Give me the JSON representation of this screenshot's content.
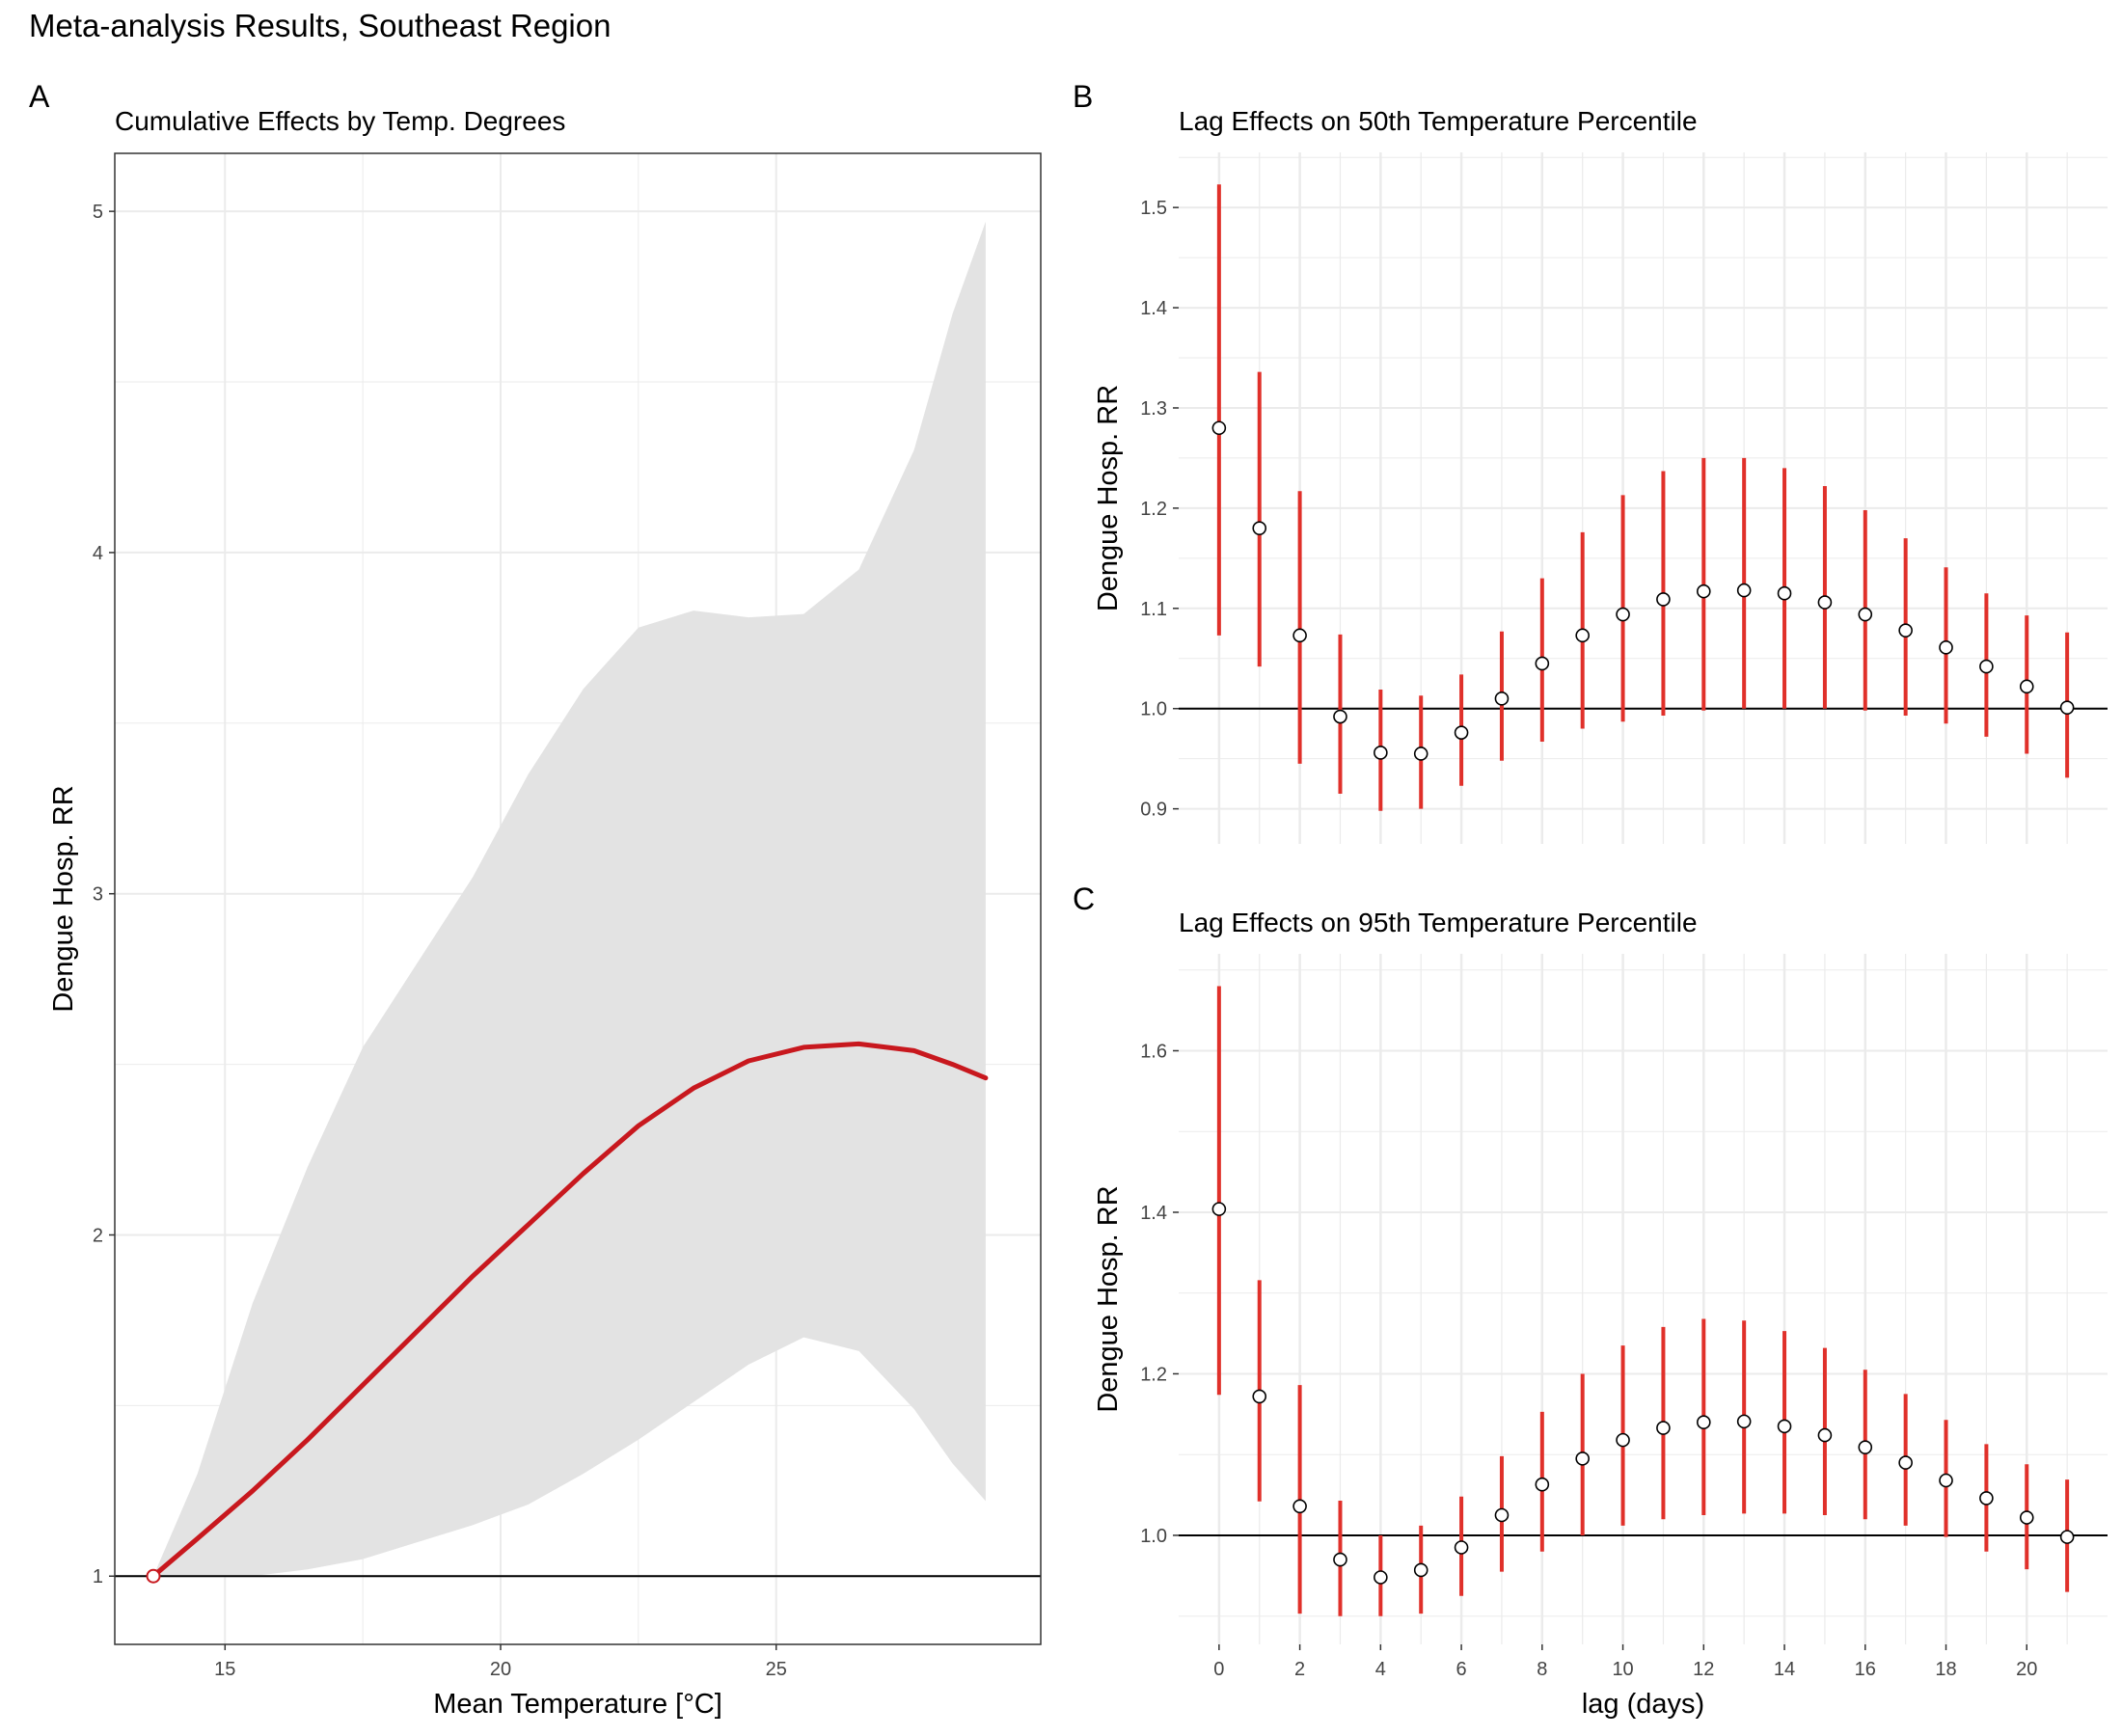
{
  "figure": {
    "title": "Meta-analysis Results, Southeast Region",
    "colors": {
      "line": "#c8181e",
      "bar": "#e0302a",
      "band": "#e3e3e3",
      "grid": "#ebebeb",
      "refline": "#000000"
    }
  },
  "chart_data": [
    {
      "panel": "A",
      "type": "line",
      "title": "Cumulative Effects by Temp. Degrees",
      "xlabel": "Mean Temperature [°C]",
      "ylabel": "Dengue Hosp. RR",
      "xlim": [
        13,
        29.8
      ],
      "ylim": [
        0.8,
        5.17
      ],
      "xticks": [
        15,
        20,
        25
      ],
      "yticks": [
        1,
        2,
        3,
        4,
        5
      ],
      "reference_line": 1,
      "reference_point": {
        "x": 13.7,
        "y": 1
      },
      "grid": true,
      "border": true,
      "series": [
        {
          "x": [
            13.7,
            14.5,
            15.5,
            16.5,
            17.5,
            18.5,
            19.5,
            20.5,
            21.5,
            22.5,
            23.5,
            24.5,
            25.5,
            26.5,
            27.5,
            28.2,
            28.8
          ],
          "y": [
            1.0,
            1.11,
            1.25,
            1.4,
            1.56,
            1.72,
            1.88,
            2.03,
            2.18,
            2.32,
            2.43,
            2.51,
            2.55,
            2.56,
            2.54,
            2.5,
            2.46
          ],
          "lower": [
            1.0,
            1.0,
            1.0,
            1.02,
            1.05,
            1.1,
            1.15,
            1.21,
            1.3,
            1.4,
            1.51,
            1.62,
            1.7,
            1.66,
            1.49,
            1.33,
            1.22
          ],
          "upper": [
            1.0,
            1.3,
            1.8,
            2.2,
            2.55,
            2.8,
            3.05,
            3.35,
            3.6,
            3.78,
            3.83,
            3.81,
            3.82,
            3.95,
            4.3,
            4.7,
            4.97
          ]
        }
      ]
    },
    {
      "panel": "B",
      "type": "scatter",
      "title": "Lag Effects on 50th Temperature Percentile",
      "xlabel": "",
      "ylabel": "Dengue Hosp. RR",
      "xlim": [
        -1,
        22
      ],
      "ylim": [
        0.865,
        1.555
      ],
      "yticks": [
        0.9,
        1.0,
        1.1,
        1.2,
        1.3,
        1.4,
        1.5
      ],
      "ytick_labels": [
        "0.9",
        "1.0",
        "1.1",
        "1.2",
        "1.3",
        "1.4",
        "1.5"
      ],
      "reference_line": 1,
      "grid": true,
      "x": [
        0,
        1,
        2,
        3,
        4,
        5,
        6,
        7,
        8,
        9,
        10,
        11,
        12,
        13,
        14,
        15,
        16,
        17,
        18,
        19,
        20,
        21
      ],
      "y": [
        1.28,
        1.18,
        1.073,
        0.992,
        0.956,
        0.955,
        0.976,
        1.01,
        1.045,
        1.073,
        1.094,
        1.109,
        1.117,
        1.118,
        1.115,
        1.106,
        1.094,
        1.078,
        1.061,
        1.042,
        1.022,
        1.001
      ],
      "lower": [
        1.073,
        1.042,
        0.945,
        0.915,
        0.898,
        0.9,
        0.923,
        0.948,
        0.967,
        0.98,
        0.987,
        0.993,
        0.998,
        1.0,
        1.0,
        1.0,
        0.998,
        0.993,
        0.985,
        0.972,
        0.955,
        0.931
      ],
      "upper": [
        1.523,
        1.336,
        1.217,
        1.074,
        1.019,
        1.013,
        1.034,
        1.077,
        1.13,
        1.176,
        1.213,
        1.237,
        1.25,
        1.25,
        1.24,
        1.222,
        1.198,
        1.17,
        1.141,
        1.115,
        1.093,
        1.076
      ]
    },
    {
      "panel": "C",
      "type": "scatter",
      "title": "Lag Effects on 95th Temperature Percentile",
      "xlabel": "lag (days)",
      "ylabel": "Dengue Hosp. RR",
      "xlim": [
        -1,
        22
      ],
      "ylim": [
        0.865,
        1.72
      ],
      "yticks": [
        1.0,
        1.2,
        1.4,
        1.6
      ],
      "ytick_labels": [
        "1.0",
        "1.2",
        "1.4",
        "1.6"
      ],
      "xticks": [
        0,
        2,
        4,
        6,
        8,
        10,
        12,
        14,
        16,
        18,
        20
      ],
      "reference_line": 1,
      "grid": true,
      "x": [
        0,
        1,
        2,
        3,
        4,
        5,
        6,
        7,
        8,
        9,
        10,
        11,
        12,
        13,
        14,
        15,
        16,
        17,
        18,
        19,
        20,
        21
      ],
      "y": [
        1.404,
        1.172,
        1.036,
        0.97,
        0.948,
        0.957,
        0.985,
        1.025,
        1.063,
        1.095,
        1.118,
        1.133,
        1.14,
        1.141,
        1.135,
        1.124,
        1.109,
        1.09,
        1.068,
        1.046,
        1.022,
        0.998
      ],
      "lower": [
        1.174,
        1.042,
        0.903,
        0.9,
        0.9,
        0.903,
        0.925,
        0.955,
        0.98,
        1.0,
        1.012,
        1.02,
        1.025,
        1.027,
        1.027,
        1.025,
        1.02,
        1.012,
        0.998,
        0.98,
        0.958,
        0.93
      ],
      "upper": [
        1.68,
        1.316,
        1.186,
        1.043,
        1.0,
        1.012,
        1.048,
        1.098,
        1.153,
        1.2,
        1.235,
        1.258,
        1.268,
        1.266,
        1.253,
        1.232,
        1.205,
        1.175,
        1.143,
        1.113,
        1.088,
        1.069
      ]
    }
  ]
}
